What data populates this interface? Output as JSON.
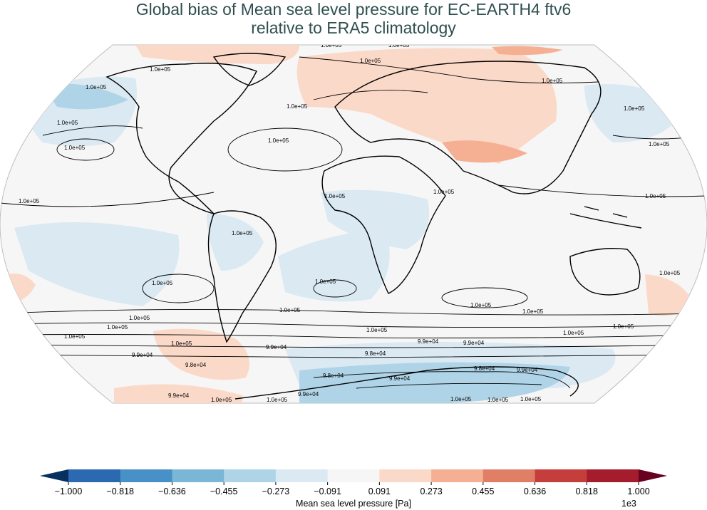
{
  "title": {
    "line1": "Global bias of Mean sea level pressure for EC-EARTH4 ftv6",
    "line2": "relative to ERA5 climatology"
  },
  "map": {
    "projection": "Robinson",
    "contour_labels": [
      "1.0e+05",
      "9.9e+04",
      "9.8e+04"
    ]
  },
  "colorbar": {
    "label": "Mean sea level pressure [Pa]",
    "multiplier": "1e3",
    "ticks": [
      "−1.000",
      "−0.818",
      "−0.636",
      "−0.455",
      "−0.273",
      "−0.091",
      "0.091",
      "0.273",
      "0.455",
      "0.636",
      "0.818",
      "1.000"
    ],
    "colors": [
      "#2b69b0",
      "#4791c6",
      "#7ab6d6",
      "#b0d4e7",
      "#dae9f2",
      "#f6f6f6",
      "#fbd9c8",
      "#f5b094",
      "#e07f65",
      "#c63e3b",
      "#a51d2d"
    ],
    "under_color": "#07305f",
    "over_color": "#68001f"
  }
}
